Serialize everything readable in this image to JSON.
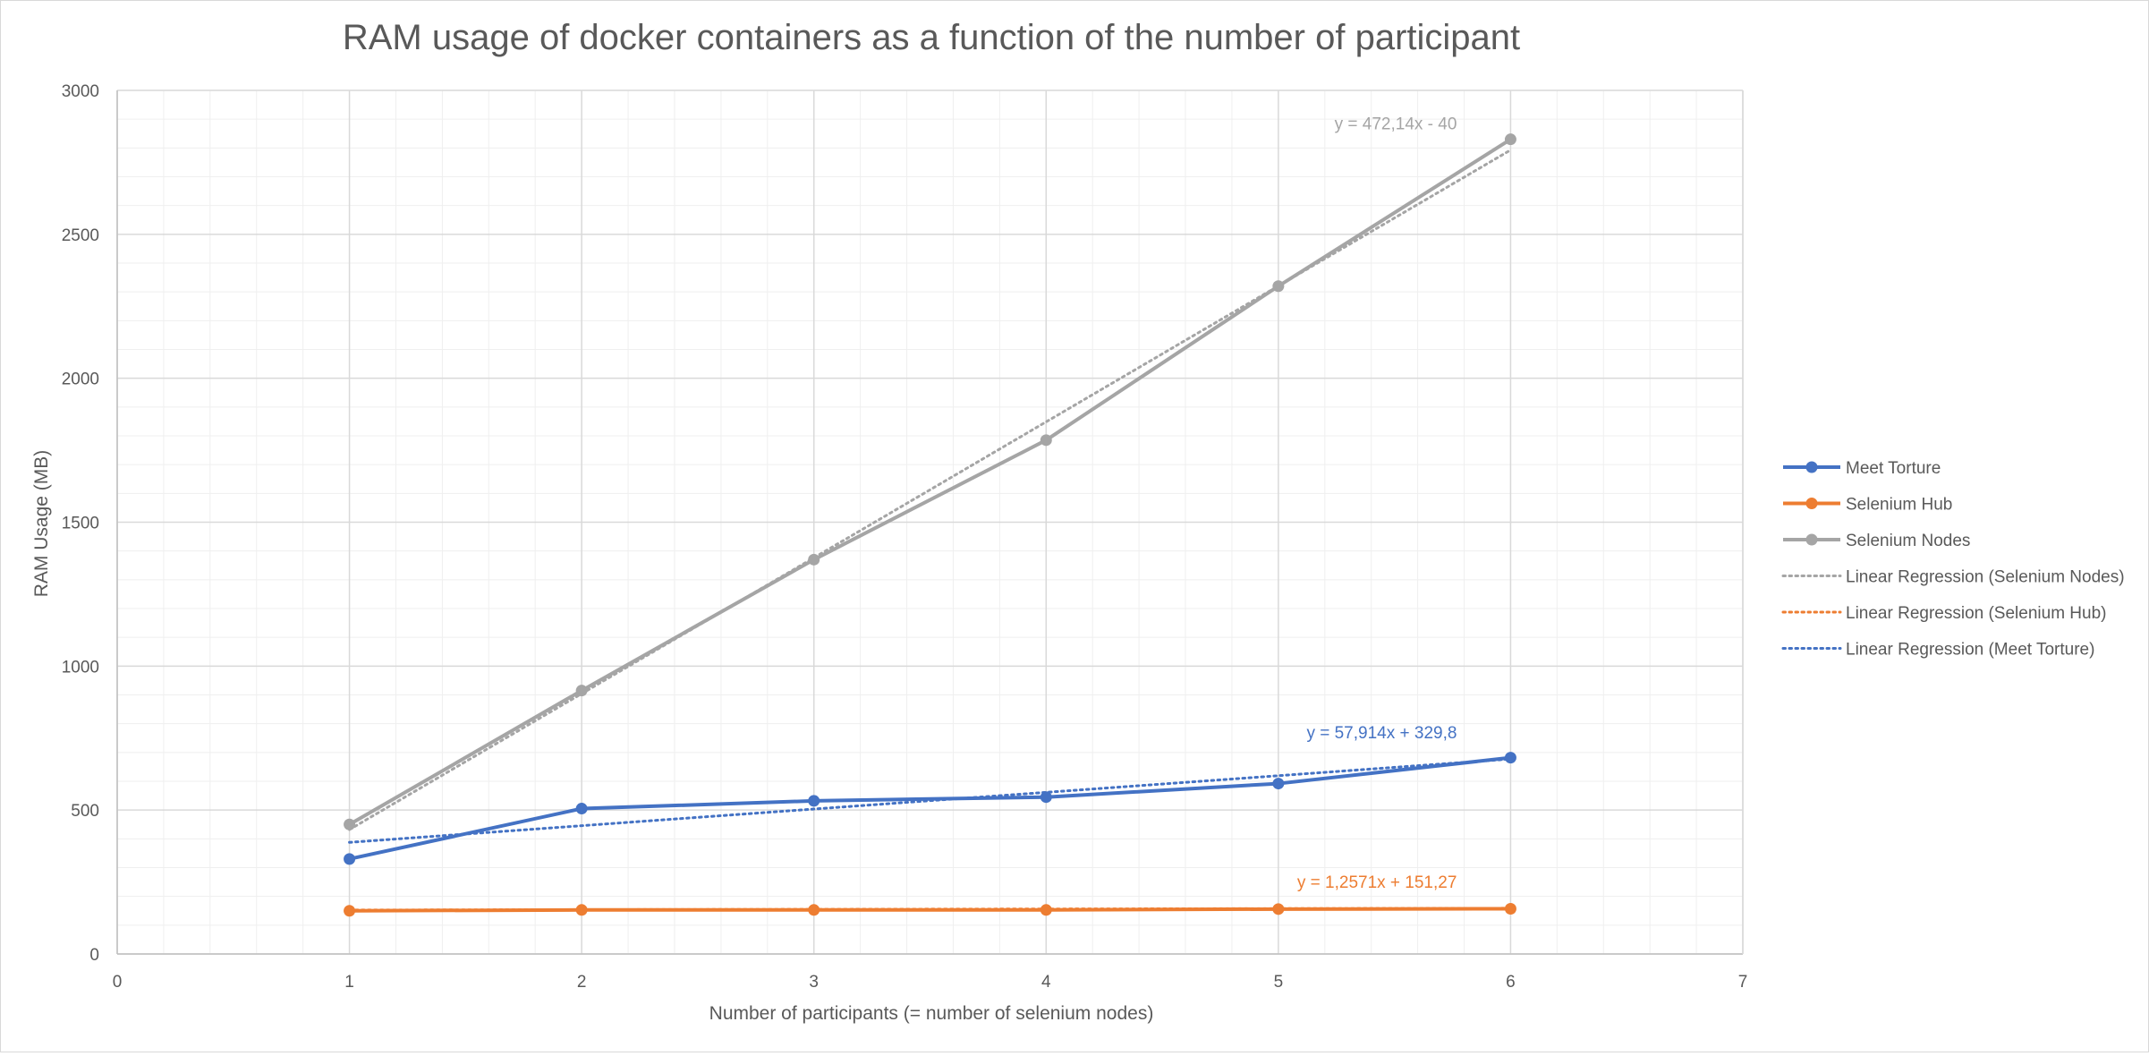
{
  "chart_data": {
    "type": "line",
    "title": "RAM usage of docker containers as a function of the number of participant",
    "xlabel": "Number of participants (= number of selenium nodes)",
    "ylabel": "RAM Usage (MB)",
    "xlim": [
      0,
      7
    ],
    "ylim": [
      0,
      3000
    ],
    "x_ticks": [
      "0",
      "1",
      "2",
      "3",
      "4",
      "5",
      "6",
      "7"
    ],
    "y_ticks": [
      "0",
      "500",
      "1000",
      "1500",
      "2000",
      "2500",
      "3000"
    ],
    "grid": true,
    "legend_position": "right",
    "series": [
      {
        "name": "Meet Torture",
        "color": "#4472c4",
        "x": [
          1,
          2,
          3,
          4,
          5,
          6
        ],
        "values": [
          330,
          505,
          532,
          545,
          592,
          682
        ]
      },
      {
        "name": "Selenium Hub",
        "color": "#ed7d31",
        "x": [
          1,
          2,
          3,
          4,
          5,
          6
        ],
        "values": [
          150,
          153,
          153,
          153,
          156,
          157
        ]
      },
      {
        "name": "Selenium Nodes",
        "color": "#a5a5a5",
        "x": [
          1,
          2,
          3,
          4,
          5,
          6
        ],
        "values": [
          450,
          915,
          1370,
          1785,
          2320,
          2830
        ]
      }
    ],
    "trendlines": [
      {
        "name": "Linear Regression (Selenium Nodes)",
        "color": "#a5a5a5",
        "slope": 472.14,
        "intercept": -40,
        "equation": "y = 472,14x - 40",
        "x_range": [
          1,
          6
        ]
      },
      {
        "name": "Linear Regression (Selenium Hub)",
        "color": "#ed7d31",
        "slope": 1.2571,
        "intercept": 151.27,
        "equation": "y = 1,2571x + 151,27",
        "x_range": [
          1,
          6
        ]
      },
      {
        "name": "Linear Regression (Meet Torture)",
        "color": "#4472c4",
        "slope": 57.914,
        "intercept": 329.8,
        "equation": "y = 57,914x + 329,8",
        "x_range": [
          1,
          6
        ]
      }
    ]
  }
}
